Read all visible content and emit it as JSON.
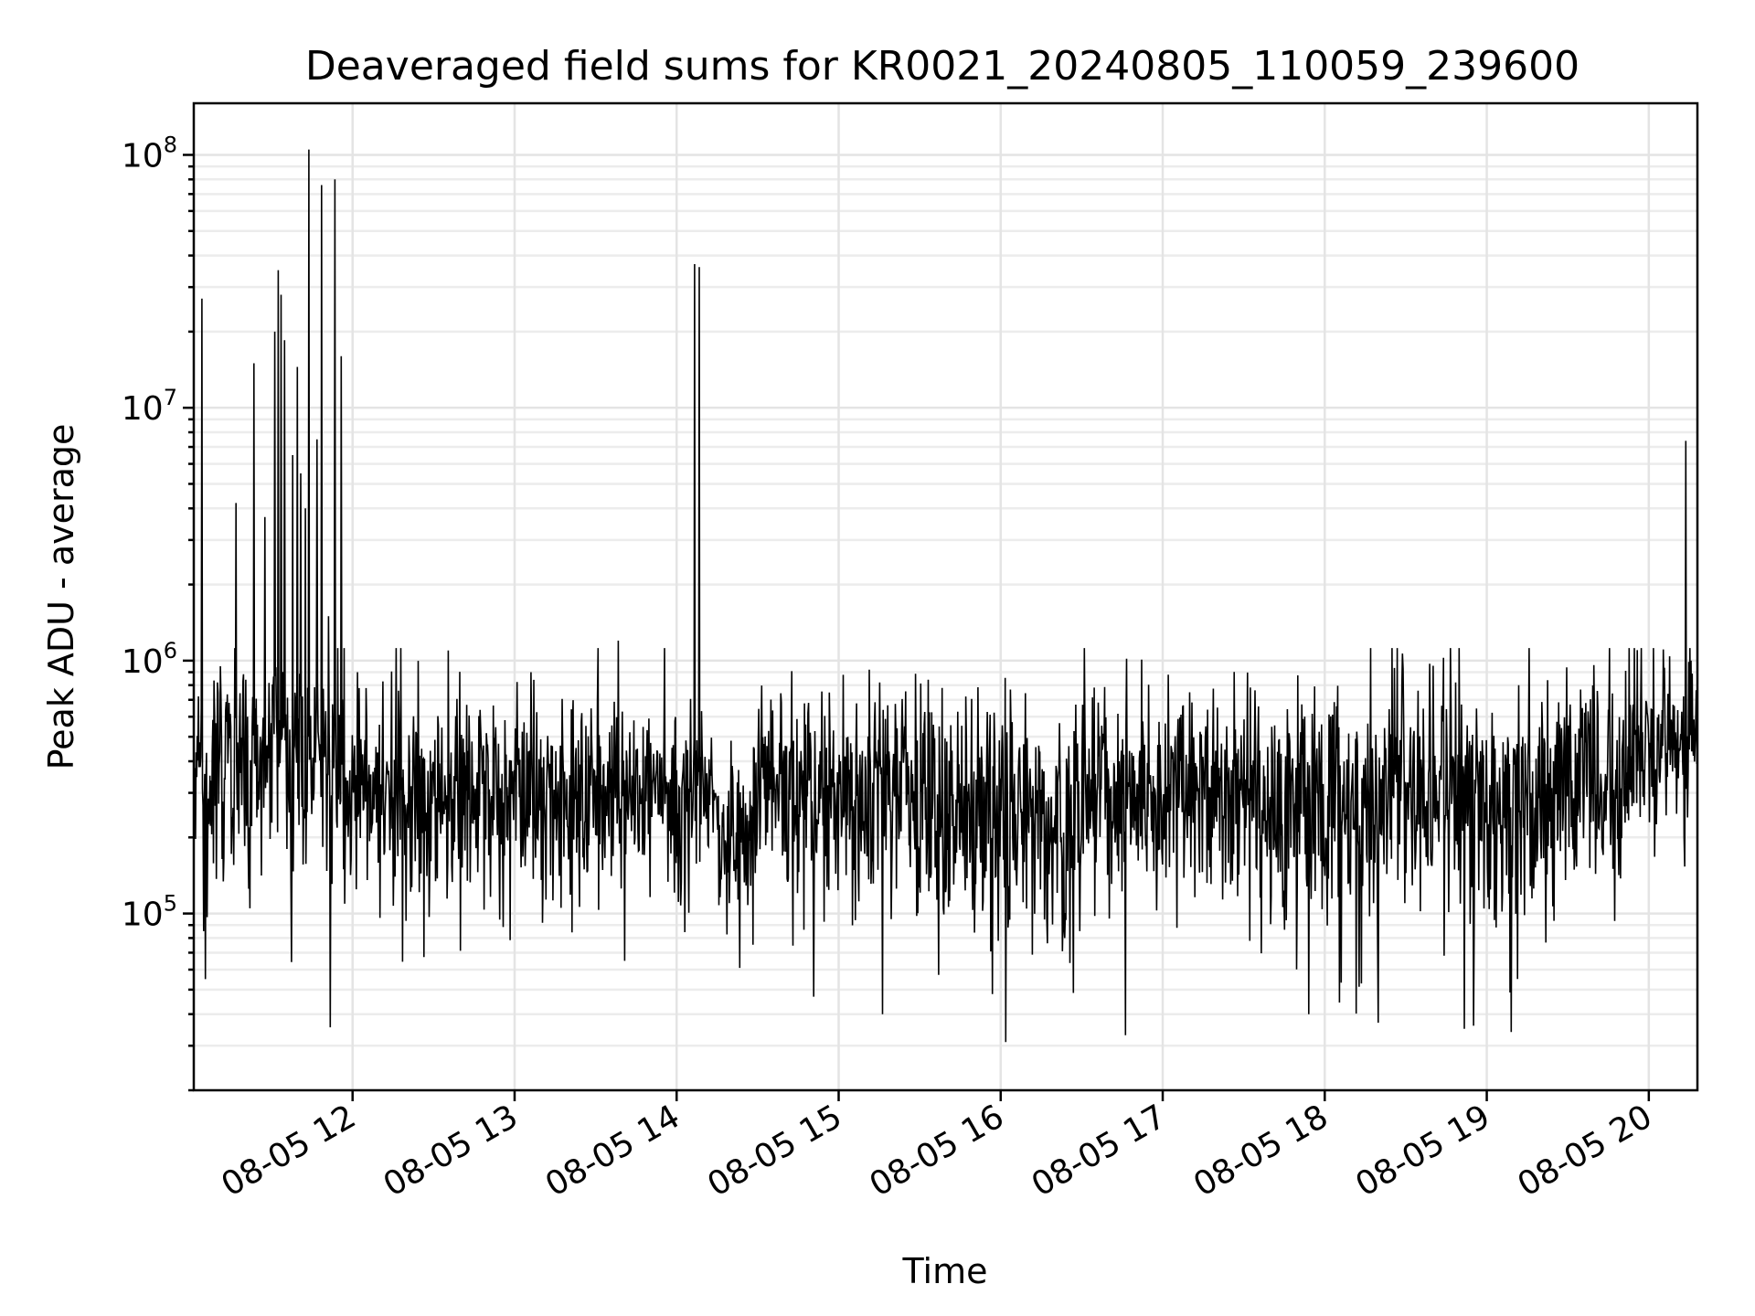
{
  "chart_data": {
    "type": "line",
    "title": "Deaveraged field sums for KR0021_20240805_110059_239600",
    "xlabel": "Time",
    "ylabel": "Peak ADU - average",
    "yscale": "log",
    "ylim": [
      20000,
      160000000
    ],
    "xlim_hours": [
      11.02,
      20.3
    ],
    "grid": true,
    "x_ticks": [
      {
        "hour": 12,
        "label": "08-05 12"
      },
      {
        "hour": 13,
        "label": "08-05 13"
      },
      {
        "hour": 14,
        "label": "08-05 14"
      },
      {
        "hour": 15,
        "label": "08-05 15"
      },
      {
        "hour": 16,
        "label": "08-05 16"
      },
      {
        "hour": 17,
        "label": "08-05 17"
      },
      {
        "hour": 18,
        "label": "08-05 18"
      },
      {
        "hour": 19,
        "label": "08-05 19"
      },
      {
        "hour": 20,
        "label": "08-05 20"
      }
    ],
    "y_ticks": [
      {
        "value": 100000,
        "base": "10",
        "exp": "5"
      },
      {
        "value": 1000000,
        "base": "10",
        "exp": "6"
      },
      {
        "value": 10000000,
        "base": "10",
        "exp": "7"
      },
      {
        "value": 100000000,
        "base": "10",
        "exp": "8"
      }
    ],
    "series": [
      {
        "name": "field sums",
        "color": "#000000",
        "segments": [
          {
            "t0": 11.02,
            "t1": 11.45,
            "median": 350000,
            "spread": 0.22
          },
          {
            "t0": 11.45,
            "t1": 11.95,
            "median": 420000,
            "spread": 0.24
          },
          {
            "t0": 11.95,
            "t1": 12.3,
            "median": 300000,
            "spread": 0.18
          },
          {
            "t0": 12.3,
            "t1": 14.25,
            "median": 290000,
            "spread": 0.19
          },
          {
            "t0": 14.25,
            "t1": 14.5,
            "median": 190000,
            "spread": 0.2
          },
          {
            "t0": 14.5,
            "t1": 15.6,
            "median": 300000,
            "spread": 0.2
          },
          {
            "t0": 15.6,
            "t1": 16.5,
            "median": 240000,
            "spread": 0.24
          },
          {
            "t0": 16.5,
            "t1": 18.0,
            "median": 290000,
            "spread": 0.2
          },
          {
            "t0": 18.0,
            "t1": 19.0,
            "median": 280000,
            "spread": 0.22
          },
          {
            "t0": 19.0,
            "t1": 19.6,
            "median": 270000,
            "spread": 0.22
          },
          {
            "t0": 19.6,
            "t1": 19.88,
            "median": 330000,
            "spread": 0.2
          },
          {
            "t0": 19.88,
            "t1": 20.3,
            "median": 480000,
            "spread": 0.14
          }
        ],
        "peaks": [
          {
            "t": 11.07,
            "value": 27000000
          },
          {
            "t": 11.09,
            "value": 55000
          },
          {
            "t": 11.28,
            "value": 4200000
          },
          {
            "t": 11.39,
            "value": 15000000
          },
          {
            "t": 11.46,
            "value": 3700000
          },
          {
            "t": 11.52,
            "value": 20000000
          },
          {
            "t": 11.54,
            "value": 35000000
          },
          {
            "t": 11.56,
            "value": 28000000
          },
          {
            "t": 11.58,
            "value": 18500000
          },
          {
            "t": 11.63,
            "value": 6500000
          },
          {
            "t": 11.66,
            "value": 14500000
          },
          {
            "t": 11.68,
            "value": 5500000
          },
          {
            "t": 11.71,
            "value": 4000000
          },
          {
            "t": 11.73,
            "value": 105000000
          },
          {
            "t": 11.78,
            "value": 7500000
          },
          {
            "t": 11.81,
            "value": 76000000
          },
          {
            "t": 11.85,
            "value": 1500000
          },
          {
            "t": 11.89,
            "value": 80000000
          },
          {
            "t": 11.93,
            "value": 16000000
          },
          {
            "t": 12.03,
            "value": 900000
          },
          {
            "t": 13.1,
            "value": 900000
          },
          {
            "t": 13.64,
            "value": 1200000
          },
          {
            "t": 13.68,
            "value": 65000
          },
          {
            "t": 14.11,
            "value": 37000000
          },
          {
            "t": 14.14,
            "value": 36000000
          },
          {
            "t": 15.27,
            "value": 40000
          },
          {
            "t": 15.95,
            "value": 48000
          },
          {
            "t": 16.03,
            "value": 31000
          },
          {
            "t": 16.77,
            "value": 33000
          },
          {
            "t": 17.9,
            "value": 40000
          },
          {
            "t": 18.33,
            "value": 37000
          },
          {
            "t": 18.86,
            "value": 35000
          },
          {
            "t": 18.92,
            "value": 36000
          },
          {
            "t": 19.15,
            "value": 34000
          },
          {
            "t": 19.93,
            "value": 1100000
          },
          {
            "t": 20.23,
            "value": 7400000
          },
          {
            "t": 20.26,
            "value": 1000000
          }
        ]
      }
    ]
  }
}
